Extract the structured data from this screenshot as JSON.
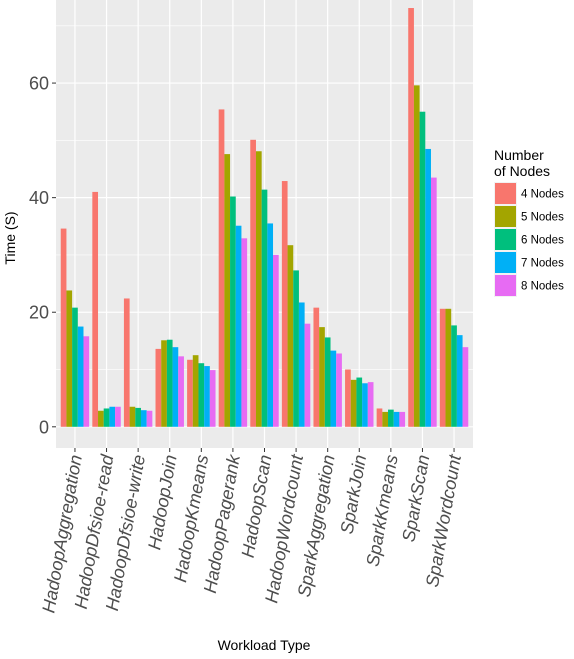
{
  "chart_data": {
    "type": "bar",
    "xlabel": "Workload Type",
    "ylabel": "Time (S)",
    "ylim": [
      -3.7,
      74.5
    ],
    "yticks": [
      0,
      20,
      40,
      60
    ],
    "grid": true,
    "legend_position": "right",
    "legend_title": "Number of Nodes",
    "categories": [
      "HadoopAggregation",
      "HadoopDfsioe-read",
      "HadoopDfsioe-write",
      "HadoopJoin",
      "HadoopKmeans",
      "HadoopPagerank",
      "HadoopScan",
      "HadoopWordcount",
      "SparkAggregation",
      "SparkJoin",
      "SparkKmeans",
      "SparkScan",
      "SparkWordcount"
    ],
    "series": [
      {
        "name": "4 Nodes",
        "color": "#F8766D",
        "values": [
          34.6,
          41.0,
          22.4,
          13.6,
          11.7,
          55.4,
          50.1,
          42.9,
          20.8,
          10.0,
          3.2,
          73.1,
          20.6
        ]
      },
      {
        "name": "5 Nodes",
        "color": "#A3A500",
        "values": [
          23.8,
          2.8,
          3.5,
          15.1,
          12.5,
          47.6,
          48.1,
          31.7,
          17.4,
          8.2,
          2.6,
          59.6,
          20.6
        ]
      },
      {
        "name": "6 Nodes",
        "color": "#00BF7D",
        "values": [
          20.8,
          3.2,
          3.3,
          15.2,
          11.1,
          40.2,
          41.4,
          27.3,
          15.6,
          8.6,
          3.0,
          55.0,
          17.7
        ]
      },
      {
        "name": "7 Nodes",
        "color": "#00B0F6",
        "values": [
          17.5,
          3.5,
          2.9,
          13.9,
          10.6,
          35.1,
          35.5,
          21.7,
          13.3,
          7.6,
          2.6,
          48.5,
          16.0
        ]
      },
      {
        "name": "8 Nodes",
        "color": "#E76BF3",
        "values": [
          15.8,
          3.5,
          2.8,
          12.3,
          9.9,
          32.9,
          30.0,
          18.0,
          12.8,
          7.8,
          2.6,
          43.5,
          13.9
        ]
      }
    ]
  }
}
